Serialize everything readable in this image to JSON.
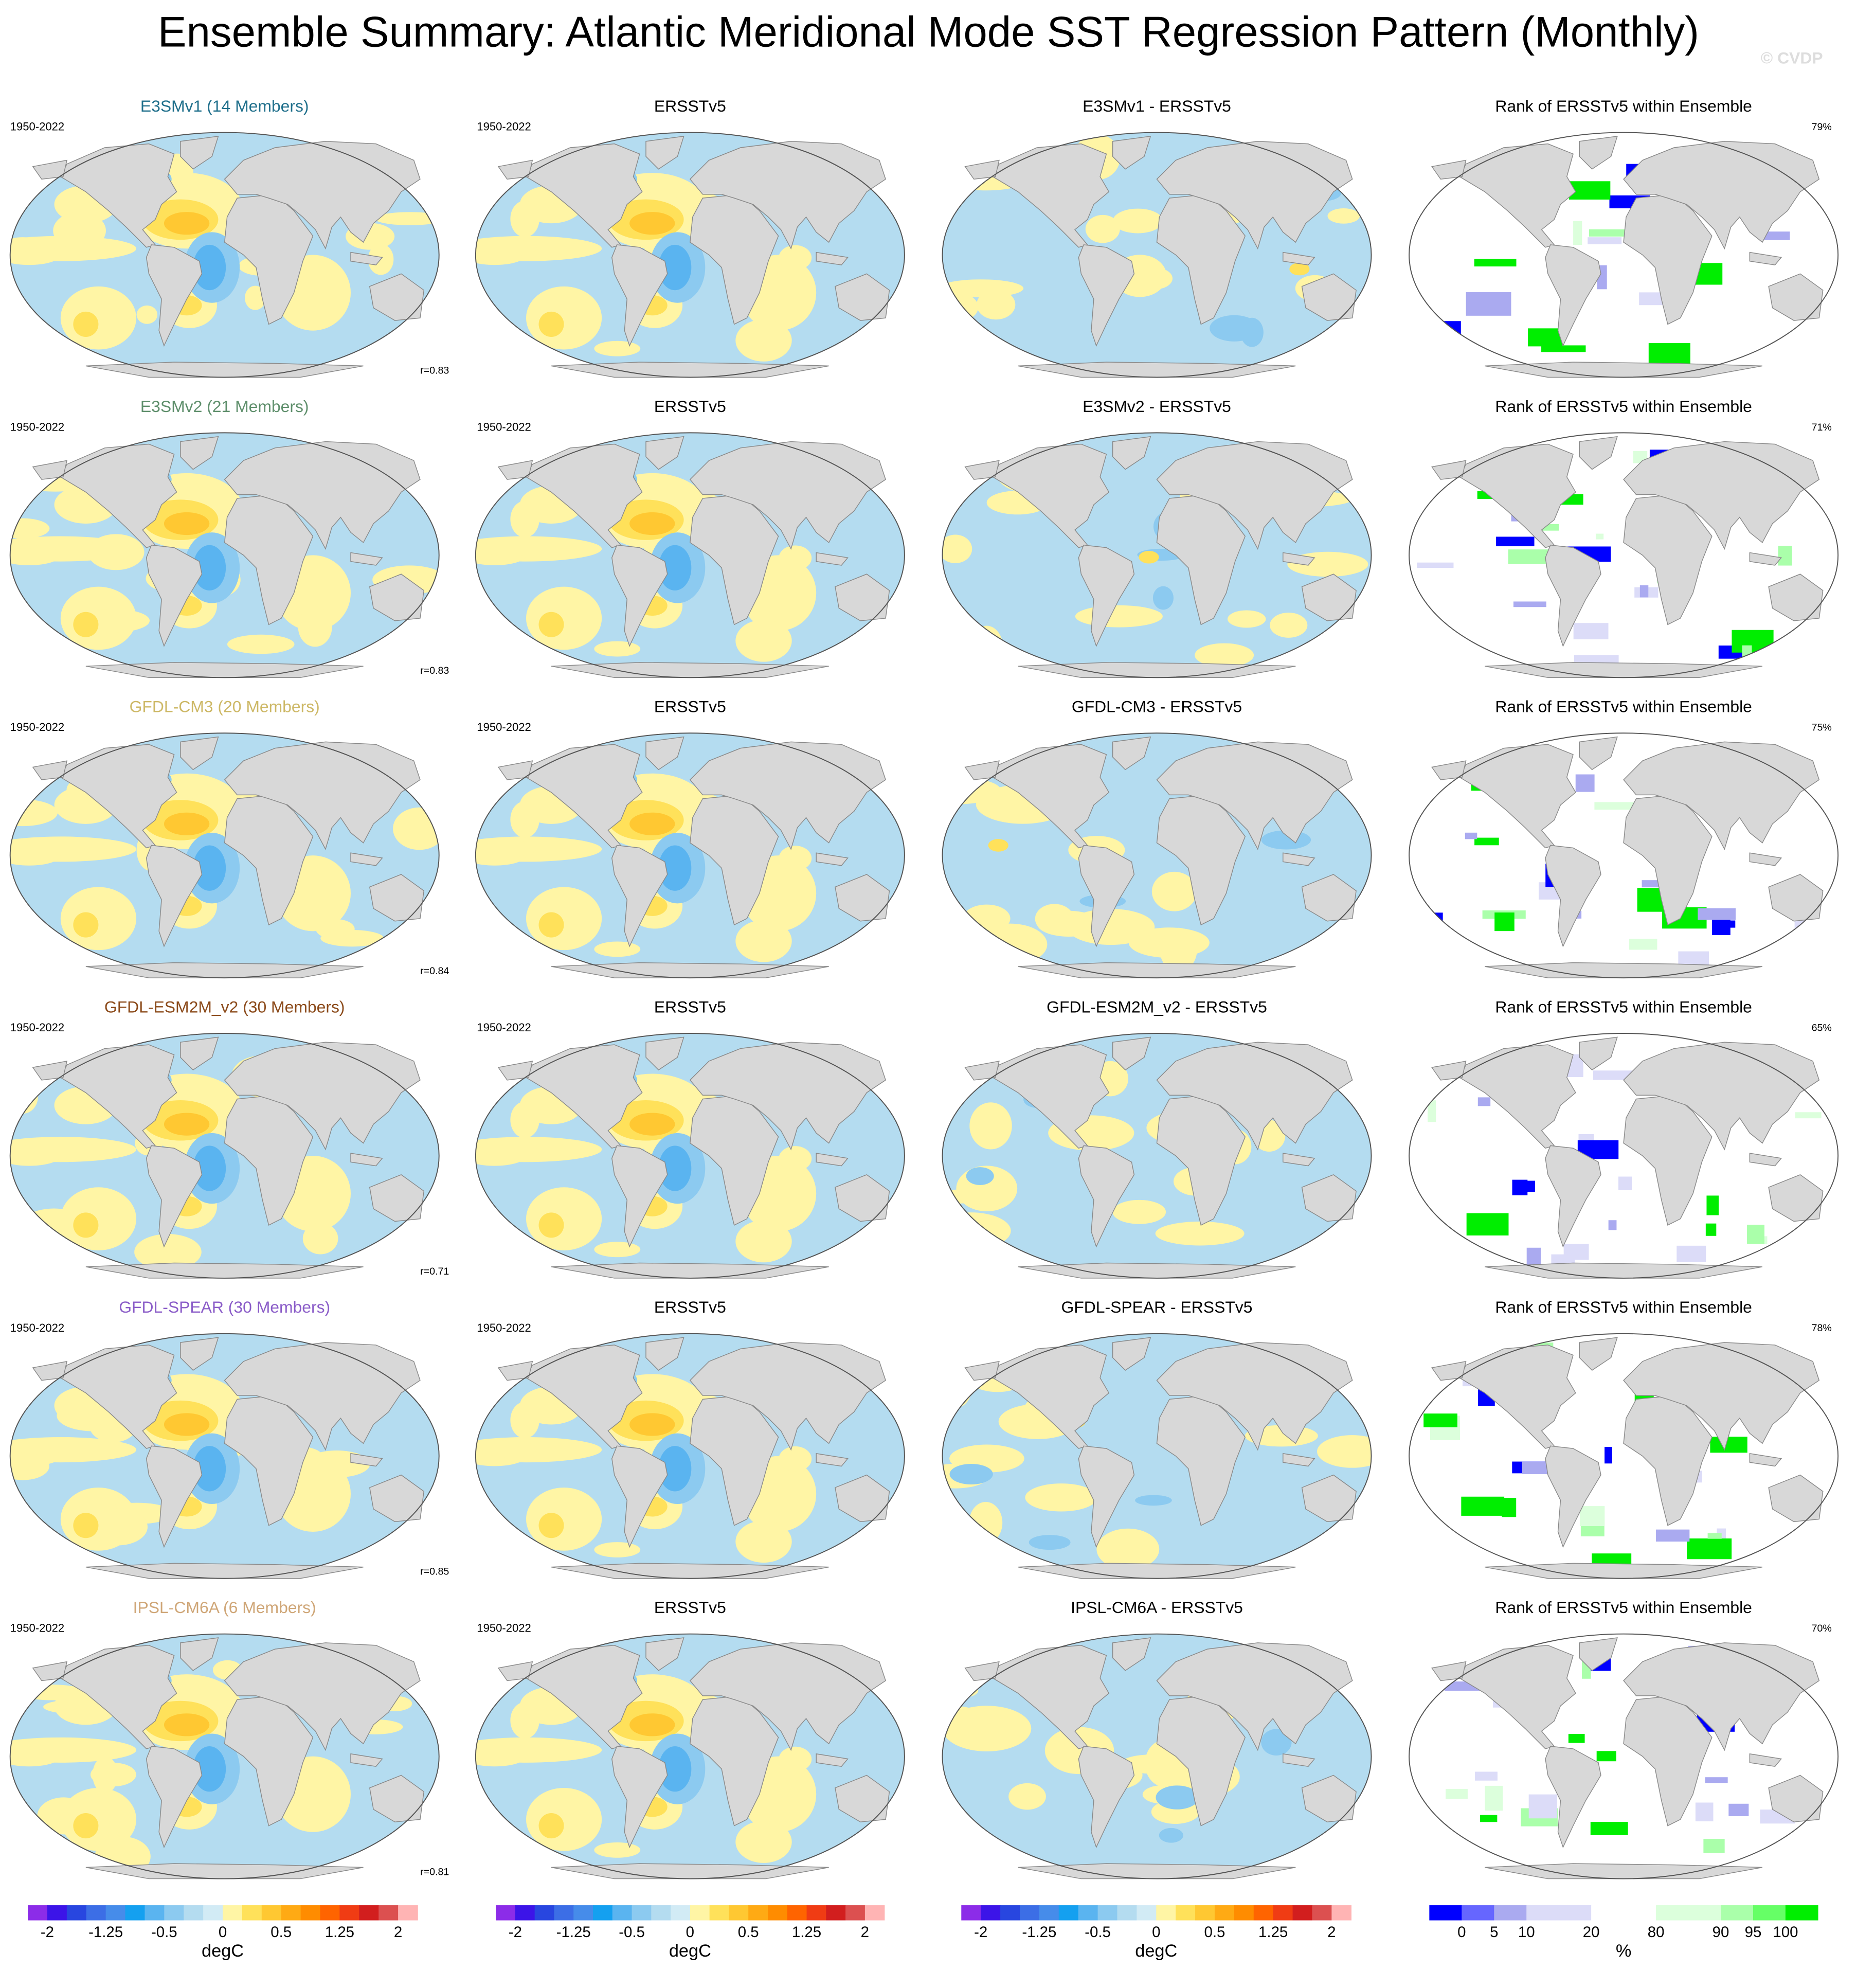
{
  "title": "Ensemble Summary: Atlantic Meridional Mode SST Regression Pattern (Monthly)",
  "watermark": "© CVDP",
  "rows": [
    {
      "model_title": "E3SMv1 (14 Members)",
      "model_color": "#1f6f8b",
      "period": "1950-2022",
      "r": "r=0.83",
      "obs_title": "ERSSTv5",
      "obs_period": "1950-2022",
      "diff_title": "E3SMv1 - ERSSTv5",
      "rank_title": "Rank of ERSSTv5 within Ensemble",
      "rank_pct": "79%"
    },
    {
      "model_title": "E3SMv2 (21 Members)",
      "model_color": "#5f8f6c",
      "period": "1950-2022",
      "r": "r=0.83",
      "obs_title": "ERSSTv5",
      "obs_period": "1950-2022",
      "diff_title": "E3SMv2 - ERSSTv5",
      "rank_title": "Rank of ERSSTv5 within Ensemble",
      "rank_pct": "71%"
    },
    {
      "model_title": "GFDL-CM3 (20 Members)",
      "model_color": "#cdb866",
      "period": "1950-2022",
      "r": "r=0.84",
      "obs_title": "ERSSTv5",
      "obs_period": "1950-2022",
      "diff_title": "GFDL-CM3 - ERSSTv5",
      "rank_title": "Rank of ERSSTv5 within Ensemble",
      "rank_pct": "75%"
    },
    {
      "model_title": "GFDL-ESM2M_v2 (30 Members)",
      "model_color": "#8b4a1a",
      "period": "1950-2022",
      "r": "r=0.71",
      "obs_title": "ERSSTv5",
      "obs_period": "1950-2022",
      "diff_title": "GFDL-ESM2M_v2 - ERSSTv5",
      "rank_title": "Rank of ERSSTv5 within Ensemble",
      "rank_pct": "65%"
    },
    {
      "model_title": "GFDL-SPEAR (30 Members)",
      "model_color": "#8a5cc8",
      "period": "1950-2022",
      "r": "r=0.85",
      "obs_title": "ERSSTv5",
      "obs_period": "1950-2022",
      "diff_title": "GFDL-SPEAR - ERSSTv5",
      "rank_title": "Rank of ERSSTv5 within Ensemble",
      "rank_pct": "78%"
    },
    {
      "model_title": "IPSL-CM6A (6 Members)",
      "model_color": "#cfa677",
      "period": "1950-2022",
      "r": "r=0.81",
      "obs_title": "ERSSTv5",
      "obs_period": "1950-2022",
      "diff_title": "IPSL-CM6A - ERSSTv5",
      "rank_title": "Rank of ERSSTv5 within Ensemble",
      "rank_pct": "70%"
    }
  ],
  "colorbars": {
    "sst": {
      "colors": [
        "#8c2ce8",
        "#3c14e8",
        "#2846e0",
        "#3c6ee6",
        "#468cea",
        "#14a0f0",
        "#5ab4f0",
        "#8ccaf0",
        "#b4dcf0",
        "#d2ebf5",
        "#fff5a5",
        "#ffe15a",
        "#ffc832",
        "#ffaa14",
        "#ff8c00",
        "#ff6400",
        "#f03c14",
        "#d21e1e",
        "#dc5050",
        "#ffb4b4"
      ],
      "ticks": [
        -2,
        -1.25,
        -0.5,
        0,
        0.5,
        1.25,
        2
      ],
      "label": "degC"
    },
    "rank": {
      "colors": [
        "#0000ff",
        "#6666ff",
        "#aaaaf0",
        "#dcdcf8",
        "#ffffff",
        "#dcffdc",
        "#aaffaa",
        "#66ff66",
        "#00ee00"
      ],
      "ticks": [
        0,
        5,
        10,
        20,
        80,
        90,
        95,
        100
      ],
      "label": "%"
    }
  }
}
